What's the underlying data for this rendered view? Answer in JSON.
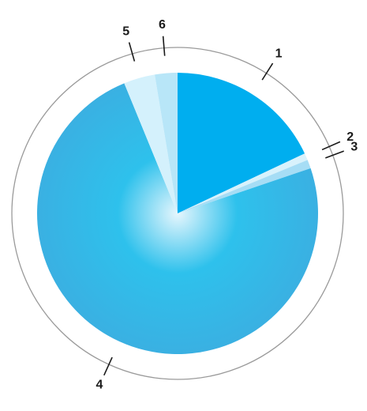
{
  "chart_data": {
    "type": "pie",
    "title": "",
    "start": "12 o'clock",
    "direction": "clockwise",
    "outer_ring": true,
    "slices": [
      {
        "label": "1",
        "value": 18.0,
        "color": "#00aeef"
      },
      {
        "label": "2",
        "value": 0.8,
        "color": "#d8f2fc"
      },
      {
        "label": "3",
        "value": 1.0,
        "color": "#a6ddf5"
      },
      {
        "label": "4",
        "value": 74.0,
        "color": "#34b6e7"
      },
      {
        "label": "5",
        "value": 3.6,
        "color": "#d4f1fc"
      },
      {
        "label": "6",
        "value": 2.6,
        "color": "#b8e6f8"
      }
    ],
    "center_highlight": "#e6f6fd",
    "ring_color": "#9a9a9a",
    "label_color": "#1a1a1a"
  }
}
